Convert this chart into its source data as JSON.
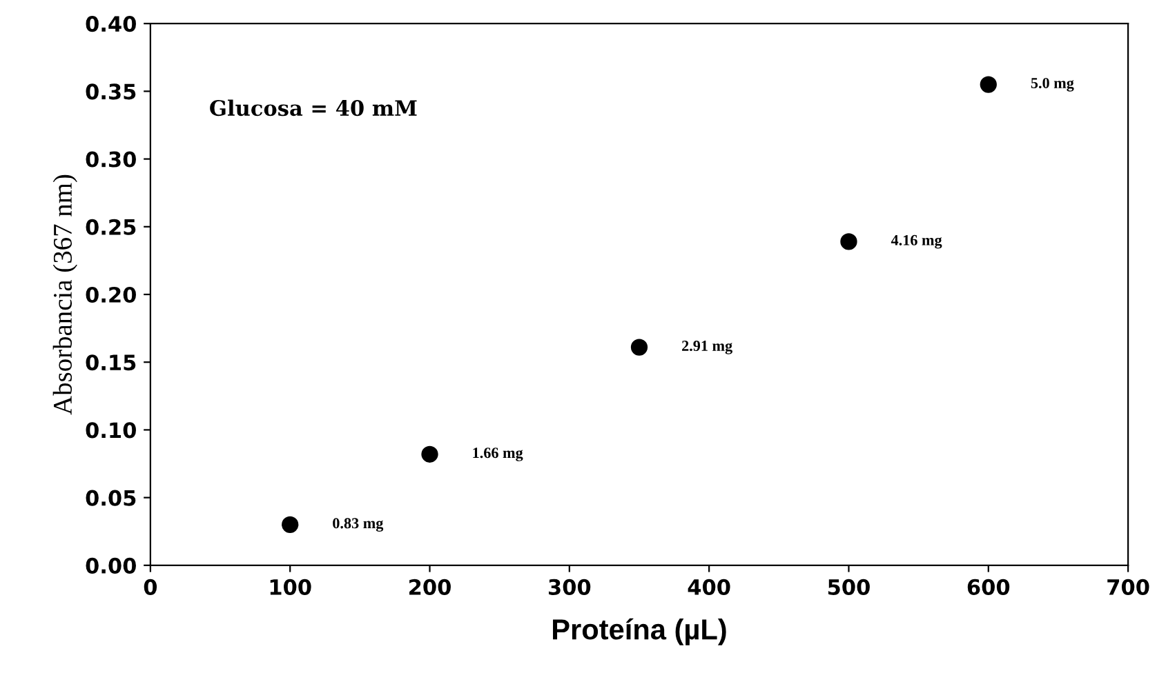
{
  "chart_data": {
    "type": "scatter",
    "xlabel": "Proteína (µL)",
    "ylabel": "Absorbancia (367 nm)",
    "x": [
      100,
      200,
      350,
      500,
      600
    ],
    "series": [
      {
        "color": "#000000",
        "values": [
          0.03,
          0.082,
          0.161,
          0.239,
          0.355
        ]
      }
    ],
    "xlim": [
      0,
      700
    ],
    "xticks": [
      0,
      100,
      200,
      300,
      400,
      500,
      600,
      700
    ],
    "ylim": [
      0,
      0.4
    ],
    "yticks": [
      {
        "value": 0,
        "label": "0.00"
      },
      {
        "value": 0.05,
        "label": "0.05"
      },
      {
        "value": 0.1,
        "label": "0.10"
      },
      {
        "value": 0.15,
        "label": "0.15"
      },
      {
        "value": 0.2,
        "label": "0.20"
      },
      {
        "value": 0.25,
        "label": "0.25"
      },
      {
        "value": 0.3,
        "label": "0.30"
      },
      {
        "value": 0.35,
        "label": "0.35"
      },
      {
        "value": 0.4,
        "label": "0.40"
      }
    ],
    "annotations": [
      "Glucosa = 40 mM",
      {
        "text": "0.83 mg",
        "x": 100,
        "y": 0.03
      },
      {
        "text": "1.66 mg",
        "x": 200,
        "y": 0.082
      },
      {
        "text": "2.91 mg",
        "x": 350,
        "y": 0.161
      },
      {
        "text": "4.16 mg",
        "x": 500,
        "y": 0.239
      },
      {
        "text": "5.0 mg",
        "x": 600,
        "y": 0.355
      }
    ],
    "marker": "circle",
    "grid": false
  }
}
